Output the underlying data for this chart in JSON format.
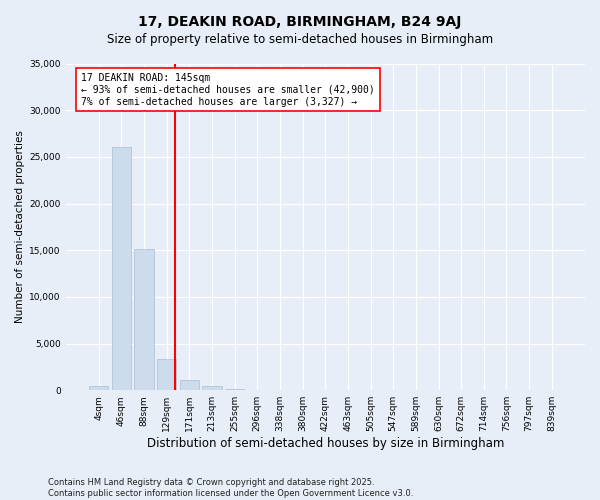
{
  "title": "17, DEAKIN ROAD, BIRMINGHAM, B24 9AJ",
  "subtitle": "Size of property relative to semi-detached houses in Birmingham",
  "xlabel": "Distribution of semi-detached houses by size in Birmingham",
  "ylabel": "Number of semi-detached properties",
  "categories": [
    "4sqm",
    "46sqm",
    "88sqm",
    "129sqm",
    "171sqm",
    "213sqm",
    "255sqm",
    "296sqm",
    "338sqm",
    "380sqm",
    "422sqm",
    "463sqm",
    "505sqm",
    "547sqm",
    "589sqm",
    "630sqm",
    "672sqm",
    "714sqm",
    "756sqm",
    "797sqm",
    "839sqm"
  ],
  "values": [
    400,
    26100,
    15100,
    3300,
    1050,
    450,
    150,
    60,
    20,
    10,
    5,
    3,
    2,
    1,
    1,
    0,
    0,
    0,
    0,
    0,
    0
  ],
  "bar_color": "#ccdcec",
  "bar_edgecolor": "#a8c0d4",
  "vline_color": "red",
  "vline_pos": 3.38,
  "vline_label_title": "17 DEAKIN ROAD: 145sqm",
  "vline_label_line2": "← 93% of semi-detached houses are smaller (42,900)",
  "vline_label_line3": "7% of semi-detached houses are larger (3,327) →",
  "annotation_box_color": "white",
  "annotation_box_edgecolor": "red",
  "ylim": [
    0,
    35000
  ],
  "yticks": [
    0,
    5000,
    10000,
    15000,
    20000,
    25000,
    30000,
    35000
  ],
  "background_color": "#e8eef8",
  "plot_background": "#e8eef8",
  "grid_color": "white",
  "footnote": "Contains HM Land Registry data © Crown copyright and database right 2025.\nContains public sector information licensed under the Open Government Licence v3.0.",
  "title_fontsize": 10,
  "subtitle_fontsize": 8.5,
  "xlabel_fontsize": 8.5,
  "ylabel_fontsize": 7.5,
  "tick_fontsize": 6.5,
  "footnote_fontsize": 6,
  "ann_fontsize": 7
}
